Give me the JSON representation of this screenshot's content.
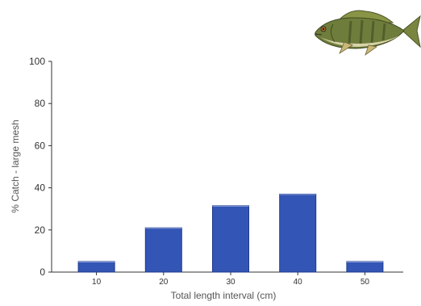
{
  "chart_data": {
    "type": "bar",
    "categories": [
      "10",
      "20",
      "30",
      "40",
      "50"
    ],
    "values": [
      5,
      21,
      31.5,
      37,
      5
    ],
    "xlabel": "Total length interval (cm)",
    "ylabel": "% Catch - large mesh",
    "ylim": [
      0,
      100
    ],
    "yticks": [
      "0",
      "20",
      "40",
      "60",
      "80",
      "100"
    ],
    "grid": false,
    "bar_color": "#3355b5",
    "bar_edge_color": "#1f3a8a"
  },
  "decorations": {
    "fish_icon": "smallmouth-bass-fish-icon",
    "fish_body_color": "#6f7d3c",
    "fish_belly_color": "#d8d2a8"
  }
}
